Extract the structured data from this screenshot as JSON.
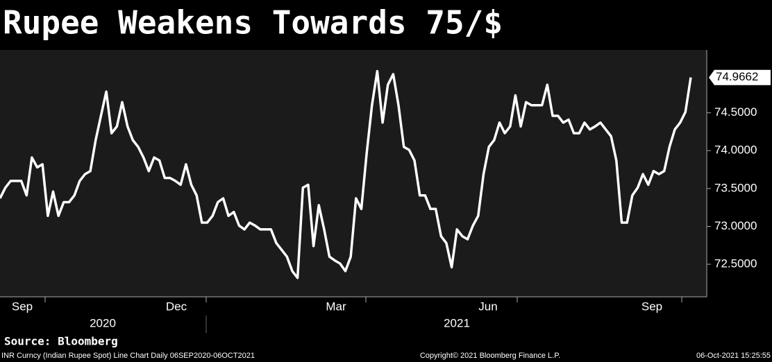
{
  "chart_data": {
    "type": "line",
    "title": "Rupee Weakens Towards 75/$",
    "source": "Source: Bloomberg",
    "footer_left": "INR Curncy (Indian Rupee Spot) Line Chart  Daily 06SEP2020-06OCT2021",
    "footer_center": "Copyright© 2021 Bloomberg Finance L.P.",
    "footer_right": "06-Oct-2021 15:25:55",
    "x_axis_labels": [
      "Sep",
      "Dec",
      "Mar",
      "Jun",
      "Sep"
    ],
    "year_labels": [
      "2020",
      "2021"
    ],
    "color": "#ffffff",
    "ylim": [
      72.07,
      75.33
    ],
    "yticks": [
      {
        "value": 72.5,
        "label": "72.5000"
      },
      {
        "value": 73,
        "label": "73.0000"
      },
      {
        "value": 73.5,
        "label": "73.5000"
      },
      {
        "value": 74,
        "label": "74.0000"
      },
      {
        "value": 74.5,
        "label": "74.5000"
      }
    ],
    "values": [
      73.37,
      73.51,
      73.6,
      73.6,
      73.6,
      73.41,
      73.91,
      73.78,
      73.82,
      73.14,
      73.46,
      73.14,
      73.32,
      73.32,
      73.41,
      73.6,
      73.69,
      73.73,
      74.14,
      74.46,
      74.78,
      74.23,
      74.32,
      74.64,
      74.32,
      74.14,
      74.05,
      73.91,
      73.73,
      73.91,
      73.87,
      73.64,
      73.64,
      73.6,
      73.55,
      73.82,
      73.55,
      73.41,
      73.05,
      73.05,
      73.14,
      73.32,
      73.37,
      73.14,
      73.19,
      73.01,
      72.96,
      73.05,
      73.01,
      72.96,
      72.96,
      72.96,
      72.78,
      72.69,
      72.6,
      72.41,
      72.32,
      73.51,
      73.55,
      72.74,
      73.28,
      72.96,
      72.6,
      72.55,
      72.51,
      72.41,
      72.6,
      73.37,
      73.23,
      73.96,
      74.6,
      75.05,
      74.37,
      74.87,
      75.01,
      74.6,
      74.05,
      74.01,
      73.87,
      73.41,
      73.41,
      73.23,
      73.23,
      72.87,
      72.78,
      72.46,
      72.96,
      72.87,
      72.83,
      73.01,
      73.14,
      73.69,
      74.05,
      74.14,
      74.37,
      74.23,
      74.32,
      74.73,
      74.32,
      74.64,
      74.6,
      74.6,
      74.6,
      74.87,
      74.46,
      74.46,
      74.37,
      74.41,
      74.23,
      74.23,
      74.37,
      74.28,
      74.32,
      74.37,
      74.28,
      74.19,
      73.87,
      73.05,
      73.05,
      73.41,
      73.51,
      73.69,
      73.55,
      73.73,
      73.69,
      73.73,
      74.05,
      74.28,
      74.37,
      74.51,
      74.9662
    ]
  }
}
